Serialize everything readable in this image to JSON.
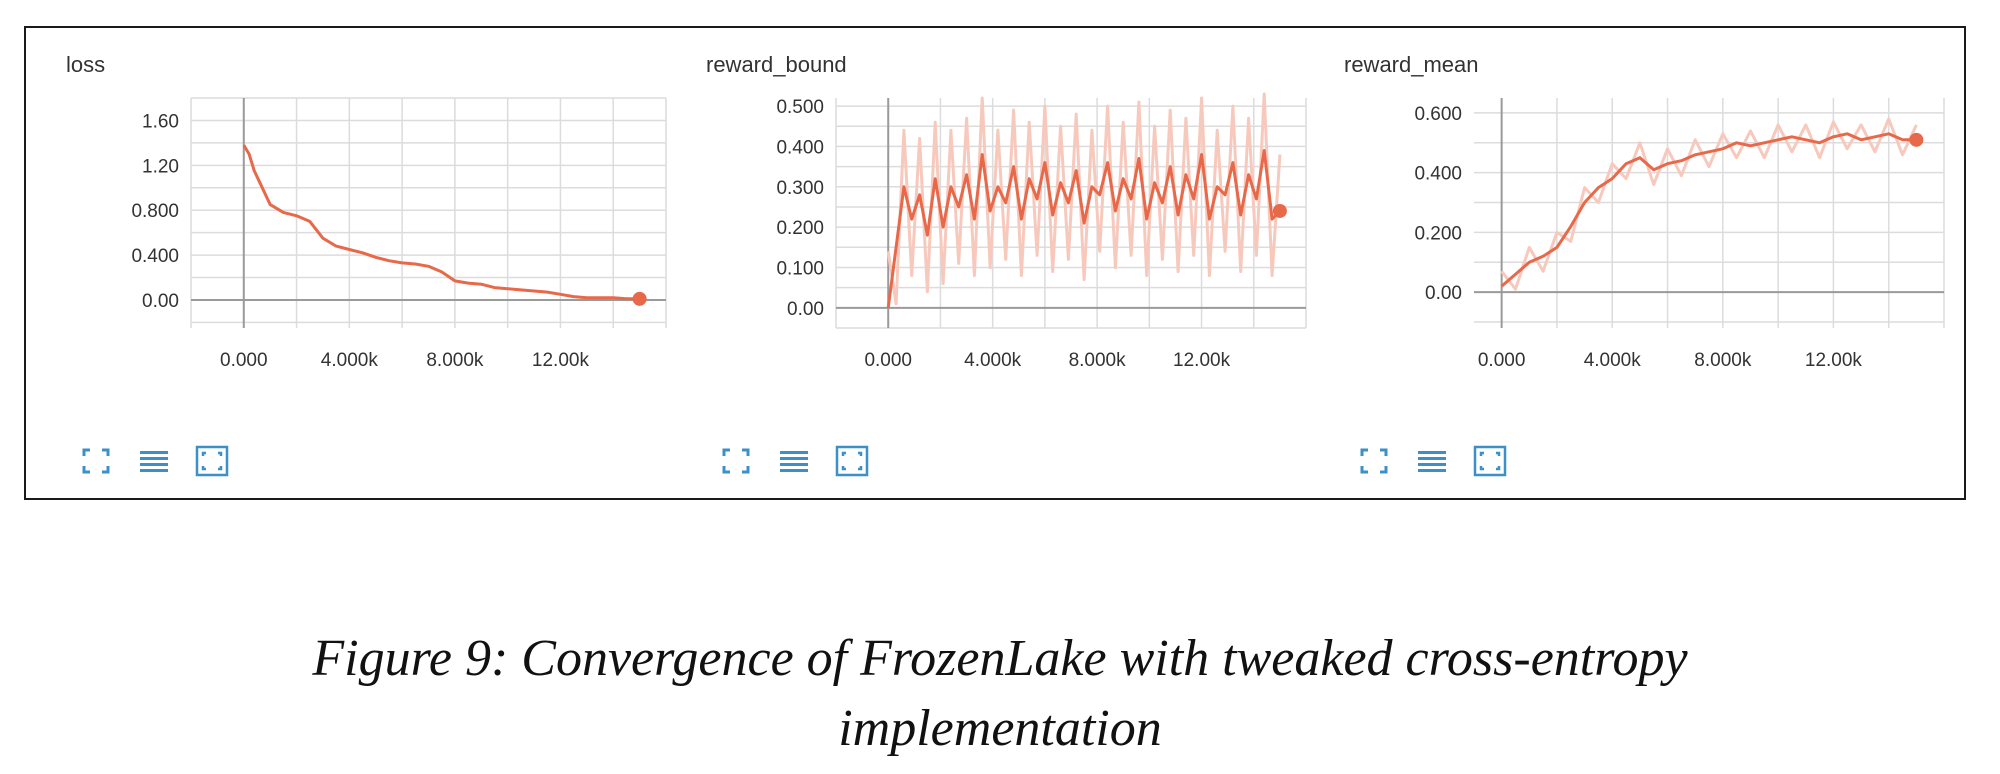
{
  "caption": {
    "line1": "Figure 9: Convergence of FrozenLake with tweaked cross-entropy",
    "line2": "implementation"
  },
  "colors": {
    "series": "#e8684a",
    "series_faint": "#f7c9bd",
    "grid": "#dcdcdc",
    "axis": "#9a9a9a",
    "toolbar_icon": "#3d8fc8"
  },
  "toolbar_icons": [
    "expand-icon",
    "data-list-icon",
    "fit-domain-icon"
  ],
  "chart_data": [
    {
      "type": "line",
      "title": "loss",
      "xlabel": "",
      "ylabel": "",
      "xlim": [
        -2000,
        16000
      ],
      "ylim": [
        -0.25,
        1.8
      ],
      "xticks": [
        0,
        4000,
        8000,
        12000
      ],
      "xtick_labels": [
        "0.000",
        "4.000k",
        "8.000k",
        "12.00k"
      ],
      "yticks": [
        0,
        0.4,
        0.8,
        1.2,
        1.6
      ],
      "ytick_labels": [
        "0.00",
        "0.400",
        "0.800",
        "1.20",
        "1.60"
      ],
      "grid": true,
      "series": [
        {
          "x": [
            0,
            200,
            400,
            700,
            1000,
            1500,
            2000,
            2500,
            3000,
            3500,
            4000,
            4500,
            5000,
            5500,
            6000,
            6500,
            7000,
            7500,
            8000,
            8500,
            9000,
            9500,
            10000,
            10500,
            11000,
            11500,
            12000,
            12500,
            13000,
            13500,
            14000,
            14500,
            15000
          ],
          "y": [
            1.38,
            1.3,
            1.15,
            1.0,
            0.85,
            0.78,
            0.75,
            0.7,
            0.55,
            0.48,
            0.45,
            0.42,
            0.38,
            0.35,
            0.33,
            0.32,
            0.3,
            0.25,
            0.17,
            0.15,
            0.14,
            0.11,
            0.1,
            0.09,
            0.08,
            0.07,
            0.05,
            0.03,
            0.02,
            0.02,
            0.02,
            0.01,
            0.01
          ]
        }
      ]
    },
    {
      "type": "line",
      "title": "reward_bound",
      "xlabel": "",
      "ylabel": "",
      "xlim": [
        -2000,
        16000
      ],
      "ylim": [
        -0.05,
        0.52
      ],
      "xticks": [
        0,
        4000,
        8000,
        12000
      ],
      "xtick_labels": [
        "0.000",
        "4.000k",
        "8.000k",
        "12.00k"
      ],
      "yticks": [
        0,
        0.1,
        0.2,
        0.3,
        0.4,
        0.5
      ],
      "ytick_labels": [
        "0.00",
        "0.100",
        "0.200",
        "0.300",
        "0.400",
        "0.500"
      ],
      "grid": true,
      "series": [
        {
          "x": [
            0,
            300,
            600,
            900,
            1200,
            1500,
            1800,
            2100,
            2400,
            2700,
            3000,
            3300,
            3600,
            3900,
            4200,
            4500,
            4800,
            5100,
            5400,
            5700,
            6000,
            6300,
            6600,
            6900,
            7200,
            7500,
            7800,
            8100,
            8400,
            8700,
            9000,
            9300,
            9600,
            9900,
            10200,
            10500,
            10800,
            11100,
            11400,
            11700,
            12000,
            12300,
            12600,
            12900,
            13200,
            13500,
            13800,
            14100,
            14400,
            14700,
            15000
          ],
          "y": [
            0.0,
            0.15,
            0.3,
            0.22,
            0.28,
            0.18,
            0.32,
            0.2,
            0.3,
            0.25,
            0.33,
            0.22,
            0.38,
            0.24,
            0.3,
            0.26,
            0.35,
            0.22,
            0.32,
            0.27,
            0.36,
            0.23,
            0.31,
            0.26,
            0.34,
            0.21,
            0.3,
            0.28,
            0.36,
            0.24,
            0.32,
            0.27,
            0.37,
            0.22,
            0.31,
            0.26,
            0.35,
            0.23,
            0.33,
            0.27,
            0.38,
            0.22,
            0.3,
            0.28,
            0.36,
            0.23,
            0.33,
            0.27,
            0.39,
            0.22,
            0.24
          ]
        }
      ]
    },
    {
      "type": "line",
      "title": "reward_mean",
      "xlabel": "",
      "ylabel": "",
      "xlim": [
        -1000,
        16000
      ],
      "ylim": [
        -0.12,
        0.65
      ],
      "xticks": [
        0,
        4000,
        8000,
        12000
      ],
      "xtick_labels": [
        "0.000",
        "4.000k",
        "8.000k",
        "12.00k"
      ],
      "yticks": [
        0,
        0.2,
        0.4,
        0.6
      ],
      "ytick_labels": [
        "0.00",
        "0.200",
        "0.400",
        "0.600"
      ],
      "grid": true,
      "series": [
        {
          "x": [
            0,
            500,
            1000,
            1500,
            2000,
            2500,
            3000,
            3500,
            4000,
            4500,
            5000,
            5500,
            6000,
            6500,
            7000,
            7500,
            8000,
            8500,
            9000,
            9500,
            10000,
            10500,
            11000,
            11500,
            12000,
            12500,
            13000,
            13500,
            14000,
            14500,
            15000
          ],
          "y": [
            0.02,
            0.06,
            0.1,
            0.12,
            0.15,
            0.22,
            0.3,
            0.35,
            0.38,
            0.43,
            0.45,
            0.41,
            0.43,
            0.44,
            0.46,
            0.47,
            0.48,
            0.5,
            0.49,
            0.5,
            0.51,
            0.52,
            0.51,
            0.5,
            0.52,
            0.53,
            0.51,
            0.52,
            0.53,
            0.51,
            0.51
          ]
        }
      ]
    }
  ]
}
